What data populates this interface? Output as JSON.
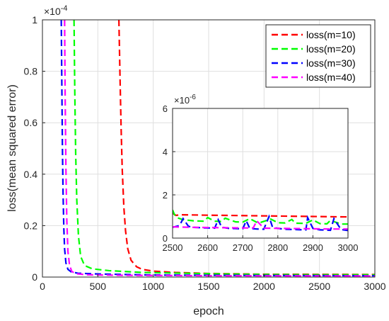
{
  "chart_data": [
    {
      "id": "main",
      "type": "line",
      "xlabel": "epoch",
      "ylabel": "loss(mean squared error)",
      "xlim": [
        0,
        3000
      ],
      "ylim": [
        0,
        1
      ],
      "y_exponent": "×10^-4",
      "x_ticks": [
        "0",
        "500",
        "1000",
        "1500",
        "2000",
        "2500",
        "3000"
      ],
      "y_ticks": [
        "0",
        "0.2",
        "0.4",
        "0.6",
        "0.8",
        "1"
      ],
      "grid": true,
      "legend": "top-right",
      "series": [
        {
          "name": "loss(m=10)",
          "color": "#ff0000",
          "x": [
            690,
            700,
            710,
            720,
            735,
            750,
            770,
            800,
            850,
            900,
            1000,
            1200,
            1500,
            2000,
            2500,
            3000
          ],
          "y": [
            1.0,
            0.78,
            0.58,
            0.42,
            0.27,
            0.18,
            0.11,
            0.065,
            0.04,
            0.03,
            0.023,
            0.018,
            0.014,
            0.011,
            0.0105,
            0.01
          ]
        },
        {
          "name": "loss(m=20)",
          "color": "#00ff00",
          "x": [
            285,
            292,
            300,
            310,
            325,
            345,
            380,
            450,
            600,
            900,
            1500,
            2000,
            2500,
            3000
          ],
          "y": [
            1.0,
            0.72,
            0.48,
            0.3,
            0.16,
            0.08,
            0.045,
            0.032,
            0.025,
            0.018,
            0.013,
            0.01,
            0.009,
            0.009
          ]
        },
        {
          "name": "loss(m=30)",
          "color": "#0000ff",
          "x": [
            170,
            175,
            180,
            186,
            193,
            200,
            212,
            230,
            260,
            320,
            500,
            1000,
            2000,
            3000
          ],
          "y": [
            1.0,
            0.75,
            0.52,
            0.33,
            0.19,
            0.11,
            0.055,
            0.03,
            0.02,
            0.015,
            0.012,
            0.008,
            0.006,
            0.005
          ]
        },
        {
          "name": "loss(m=40)",
          "color": "#ff00ff",
          "x": [
            200,
            205,
            212,
            220,
            230,
            245,
            265,
            300,
            400,
            700,
            1500,
            3000
          ],
          "y": [
            1.0,
            0.7,
            0.42,
            0.22,
            0.1,
            0.045,
            0.022,
            0.013,
            0.009,
            0.007,
            0.005,
            0.004
          ]
        }
      ]
    },
    {
      "id": "inset",
      "type": "line",
      "xlim": [
        2500,
        3000
      ],
      "ylim": [
        0,
        6
      ],
      "y_exponent": "×10^-6",
      "x_ticks": [
        "2500",
        "2600",
        "2700",
        "2800",
        "2900",
        "3000"
      ],
      "y_ticks": [
        "0",
        "2",
        "4",
        "6"
      ],
      "grid": true,
      "series": [
        {
          "name": "loss(m=10)",
          "color": "#ff0000",
          "x": [
            2500,
            2510,
            2520,
            2600,
            2700,
            2800,
            2900,
            3000
          ],
          "y": [
            1.15,
            1.05,
            1.08,
            1.06,
            1.04,
            1.02,
            1.0,
            0.98
          ]
        },
        {
          "name": "loss(m=20)",
          "color": "#00ff00",
          "x": [
            2500,
            2505,
            2512,
            2530,
            2560,
            2590,
            2600,
            2620,
            2640,
            2650,
            2680,
            2700,
            2720,
            2740,
            2750,
            2780,
            2800,
            2820,
            2840,
            2850,
            2880,
            2900,
            2920,
            2940,
            2950,
            2980,
            3000
          ],
          "y": [
            1.3,
            1.1,
            0.95,
            0.85,
            0.8,
            0.78,
            0.95,
            0.78,
            0.77,
            0.92,
            0.75,
            0.74,
            0.9,
            0.73,
            0.72,
            0.88,
            0.71,
            0.7,
            0.86,
            0.69,
            0.68,
            0.84,
            0.67,
            0.66,
            0.82,
            0.65,
            0.65
          ]
        },
        {
          "name": "loss(m=30)",
          "color": "#0000ff",
          "x": [
            2500,
            2520,
            2530,
            2545,
            2555,
            2580,
            2600,
            2620,
            2630,
            2640,
            2660,
            2680,
            2700,
            2710,
            2720,
            2740,
            2760,
            2775,
            2785,
            2800,
            2820,
            2840,
            2860,
            2880,
            2885,
            2900,
            2920,
            2940,
            2950,
            2960,
            2980,
            3000
          ],
          "y": [
            0.5,
            0.58,
            0.9,
            0.55,
            0.5,
            0.48,
            0.47,
            0.46,
            0.85,
            0.5,
            0.45,
            0.44,
            0.43,
            0.8,
            0.45,
            0.42,
            0.41,
            1.0,
            0.5,
            0.45,
            0.41,
            0.4,
            0.39,
            0.38,
            0.95,
            0.45,
            0.38,
            0.37,
            0.36,
            0.9,
            0.4,
            0.35
          ]
        },
        {
          "name": "loss(m=40)",
          "color": "#ff00ff",
          "x": [
            2500,
            2550,
            2600,
            2650,
            2700,
            2730,
            2740,
            2760,
            2800,
            2850,
            2900,
            2950,
            3000
          ],
          "y": [
            0.52,
            0.5,
            0.49,
            0.48,
            0.47,
            0.47,
            0.8,
            0.46,
            0.45,
            0.44,
            0.43,
            0.42,
            0.42
          ]
        }
      ]
    }
  ]
}
